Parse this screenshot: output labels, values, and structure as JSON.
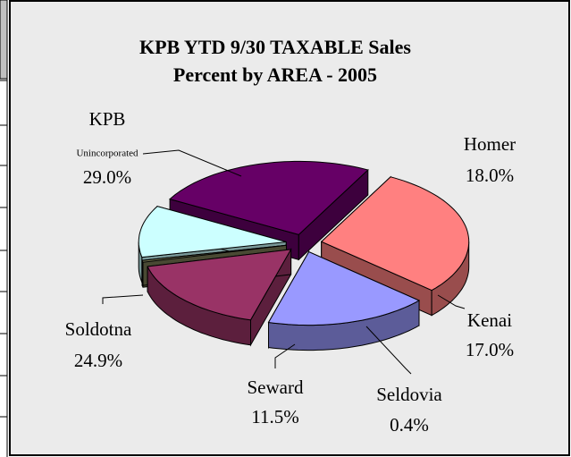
{
  "chart_data": {
    "type": "pie",
    "title": "KPB YTD 9/30 TAXABLE Sales",
    "subtitle": "Percent by AREA - 2005",
    "categories": [
      "KPB",
      "Homer",
      "Kenai",
      "Seldovia",
      "Seward",
      "Soldotna"
    ],
    "annotations": [
      "Unincorporated"
    ],
    "values": [
      29.0,
      18.0,
      17.0,
      0.4,
      11.5,
      24.9
    ],
    "value_labels": [
      "29.0%",
      "18.0%",
      "17.0%",
      "0.4%",
      "11.5%",
      "24.9%"
    ],
    "colors": [
      "#ff8080",
      "#9999ff",
      "#993366",
      "#7a7a55",
      "#ccffff",
      "#660066"
    ]
  }
}
